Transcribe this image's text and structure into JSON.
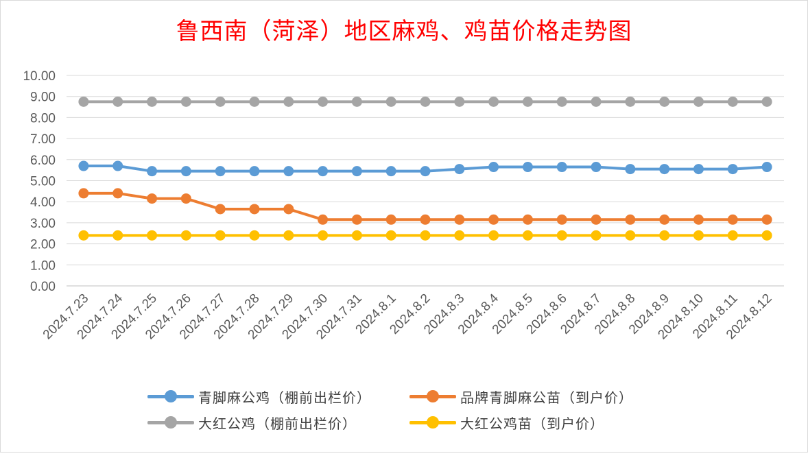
{
  "chart_data": {
    "type": "line",
    "title": "鲁西南（菏泽）地区麻鸡、鸡苗价格走势图",
    "xlabel": "",
    "ylabel": "",
    "ylim": [
      0,
      10
    ],
    "ytick_step": 1,
    "ytick_labels": [
      "0.00",
      "1.00",
      "2.00",
      "3.00",
      "4.00",
      "5.00",
      "6.00",
      "7.00",
      "8.00",
      "9.00",
      "10.00"
    ],
    "grid": "horizontal",
    "legend_position": "bottom",
    "categories": [
      "2024.7.23",
      "2024.7.24",
      "2024.7.25",
      "2024.7.26",
      "2024.7.27",
      "2024.7.28",
      "2024.7.29",
      "2024.7.30",
      "2024.7.31",
      "2024.8.1",
      "2024.8.2",
      "2024.8.3",
      "2024.8.4",
      "2024.8.5",
      "2024.8.6",
      "2024.8.7",
      "2024.8.8",
      "2024.8.9",
      "2024.8.10",
      "2024.8.11",
      "2024.8.12"
    ],
    "series": [
      {
        "name": "青脚麻公鸡（棚前出栏价）",
        "color": "#5b9bd5",
        "values": [
          5.7,
          5.7,
          5.45,
          5.45,
          5.45,
          5.45,
          5.45,
          5.45,
          5.45,
          5.45,
          5.45,
          5.55,
          5.65,
          5.65,
          5.65,
          5.65,
          5.55,
          5.55,
          5.55,
          5.55,
          5.65
        ]
      },
      {
        "name": "品牌青脚麻公苗（到户价）",
        "color": "#ed7d31",
        "values": [
          4.4,
          4.4,
          4.15,
          4.15,
          3.65,
          3.65,
          3.65,
          3.15,
          3.15,
          3.15,
          3.15,
          3.15,
          3.15,
          3.15,
          3.15,
          3.15,
          3.15,
          3.15,
          3.15,
          3.15,
          3.15
        ]
      },
      {
        "name": "大红公鸡（棚前出栏价）",
        "color": "#a5a5a5",
        "values": [
          8.75,
          8.75,
          8.75,
          8.75,
          8.75,
          8.75,
          8.75,
          8.75,
          8.75,
          8.75,
          8.75,
          8.75,
          8.75,
          8.75,
          8.75,
          8.75,
          8.75,
          8.75,
          8.75,
          8.75,
          8.75
        ]
      },
      {
        "name": "大红公鸡苗（到户价）",
        "color": "#ffc000",
        "values": [
          2.4,
          2.4,
          2.4,
          2.4,
          2.4,
          2.4,
          2.4,
          2.4,
          2.4,
          2.4,
          2.4,
          2.4,
          2.4,
          2.4,
          2.4,
          2.4,
          2.4,
          2.4,
          2.4,
          2.4,
          2.4
        ]
      }
    ]
  }
}
